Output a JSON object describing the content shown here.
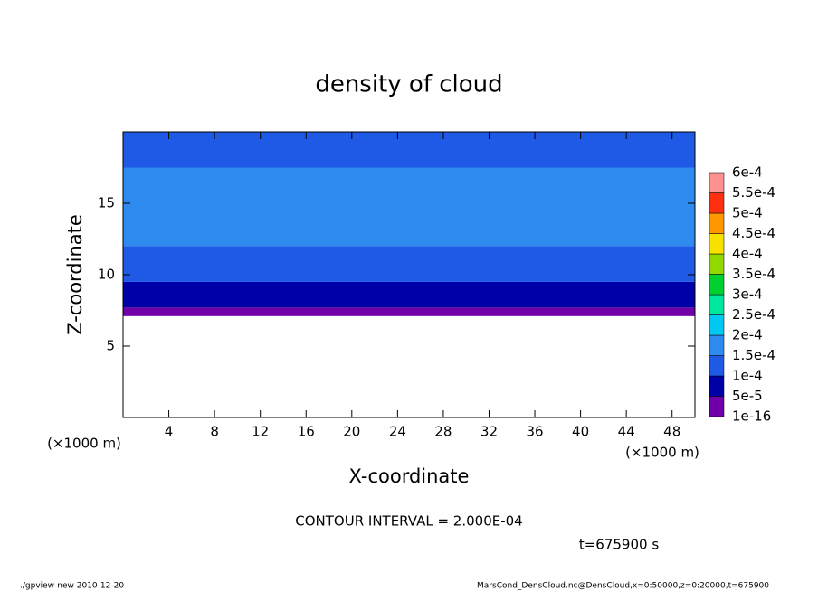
{
  "chart_data": {
    "type": "contour",
    "title": "density of cloud",
    "xlabel": "X-coordinate",
    "ylabel": "Z-coordinate",
    "x_units": "(×1000 m)",
    "y_units": "(×1000 m)",
    "xlim": [
      0,
      50
    ],
    "ylim": [
      0,
      20
    ],
    "xticks": [
      4,
      8,
      12,
      16,
      20,
      24,
      28,
      32,
      36,
      40,
      44,
      48
    ],
    "yticks": [
      5,
      10,
      15
    ],
    "z_edges": [
      0,
      7.1,
      7.7,
      9.5,
      12,
      17.5,
      20
    ],
    "values": [
      null,
      2e-05,
      7e-05,
      0.00012,
      0.00016,
      0.00012
    ],
    "levels": [
      {
        "value": 1e-16,
        "label": "1e-16"
      },
      {
        "value": 5e-05,
        "label": "5e-5"
      },
      {
        "value": 0.0001,
        "label": "1e-4"
      },
      {
        "value": 0.00015,
        "label": "1.5e-4"
      },
      {
        "value": 0.0002,
        "label": "2e-4"
      },
      {
        "value": 0.00025,
        "label": "2.5e-4"
      },
      {
        "value": 0.0003,
        "label": "3e-4"
      },
      {
        "value": 0.00035,
        "label": "3.5e-4"
      },
      {
        "value": 0.0004,
        "label": "4e-4"
      },
      {
        "value": 0.00045,
        "label": "4.5e-4"
      },
      {
        "value": 0.0005,
        "label": "5e-4"
      },
      {
        "value": 0.00055,
        "label": "5.5e-4"
      },
      {
        "value": 0.0006,
        "label": "6e-4"
      }
    ],
    "level_colors": [
      "#7000a8",
      "#0000a8",
      "#1e5ae6",
      "#2f8af0",
      "#00c8f0",
      "#00e8a0",
      "#00d030",
      "#90d800",
      "#f8e000",
      "#ff9800",
      "#ff3010",
      "#ff9090"
    ],
    "contour_interval": "CONTOUR INTERVAL = 2.000E-04",
    "time_label": "t=675900 s",
    "footer_left": "./gpview-new  2010-12-20",
    "footer_right": "MarsCond_DensCloud.nc@DensCloud,x=0:50000,z=0:20000,t=675900"
  }
}
